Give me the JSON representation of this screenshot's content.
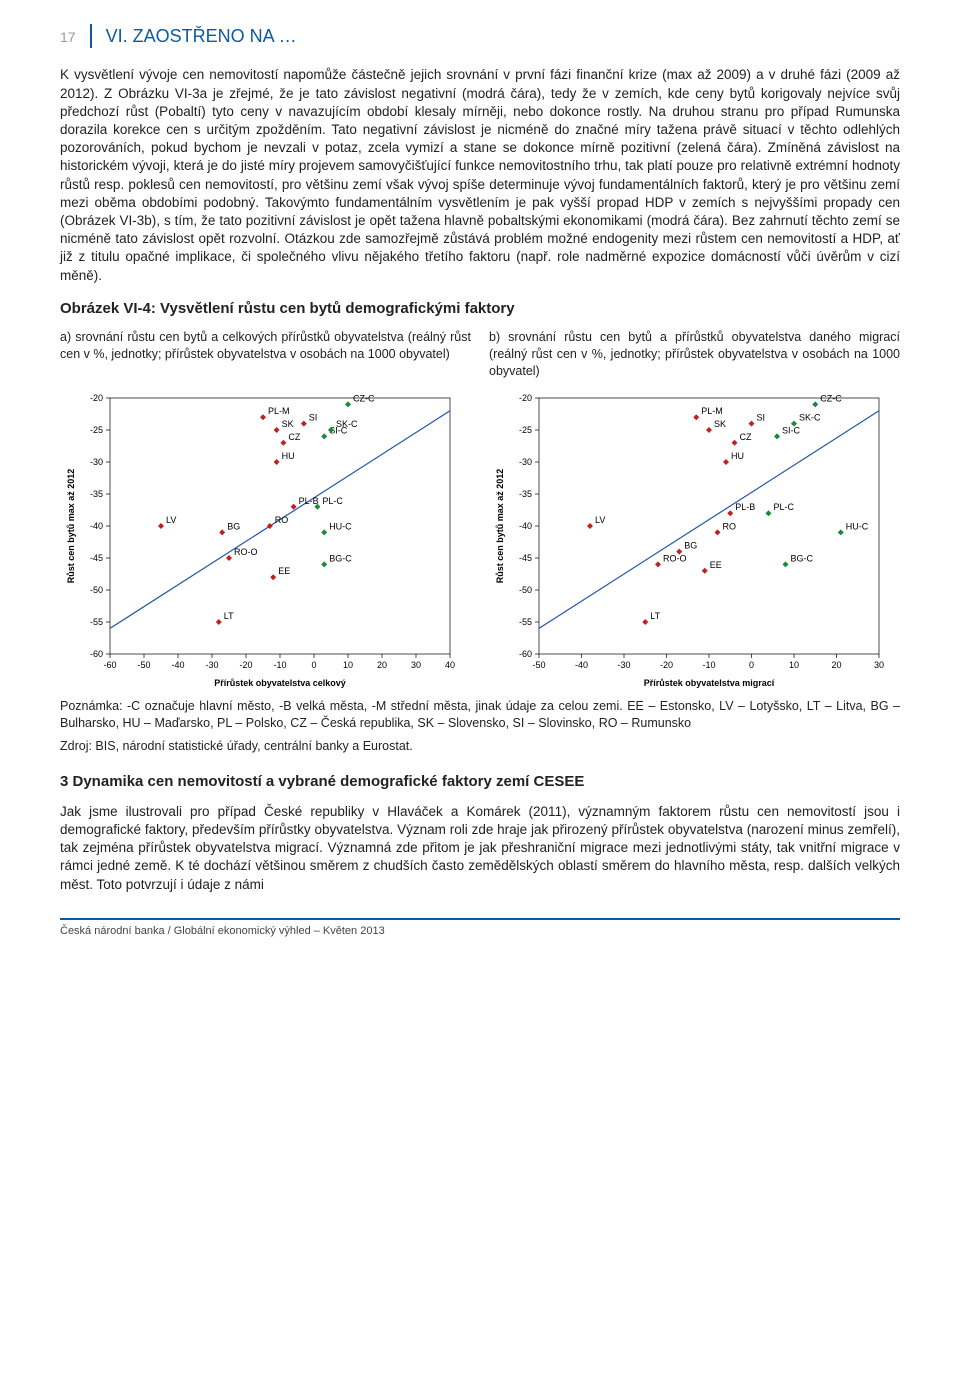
{
  "page_number": "17",
  "header_title": "VI. ZAOSTŘENO NA …",
  "colors": {
    "accent": "#0b5aa3",
    "text": "#222222",
    "grey": "#9a9a9a",
    "marker_red": "#c02020",
    "marker_green": "#178a3a",
    "line_blue": "#2255aa"
  },
  "para1": "K vysvětlení vývoje cen nemovitostí napomůže částečně jejich srovnání v první fázi finanční krize (max až 2009) a v druhé fázi (2009 až 2012). Z Obrázku VI-3a je zřejmé, že je tato závislost negativní (modrá čára), tedy že v zemích, kde ceny bytů korigovaly nejvíce svůj předchozí růst (Pobaltí) tyto ceny v navazujícím období klesaly mírněji, nebo dokonce rostly. Na druhou stranu pro případ Rumunska dorazila korekce cen s určitým zpožděním. Tato negativní závislost je nicméně do značné míry tažena právě situací v těchto odlehlých pozorováních, pokud bychom je nevzali v potaz, zcela vymizí a stane se dokonce mírně pozitivní (zelená čára). Zmíněná závislost na historickém vývoji, která je do jisté míry projevem samovyčišťující funkce nemovitostního trhu, tak platí pouze pro relativně extrémní hodnoty růstů resp. poklesů cen nemovitostí, pro většinu zemí však vývoj spíše determinuje vývoj fundamentálních faktorů, který je pro většinu zemí mezi oběma obdobími podobný. Takovýmto fundamentálním vysvětlením je pak vyšší propad HDP v zemích s nejvyššími propady cen (Obrázek VI-3b), s tím, že tato pozitivní závislost je opět tažena hlavně pobaltskými ekonomikami (modrá čára). Bez zahrnutí těchto zemí se nicméně tato závislost opět rozvolní. Otázkou zde samozřejmě zůstává problém možné endogenity mezi růstem cen nemovitostí a HDP, ať již z titulu opačné implikace, či společného vlivu nějakého třetího faktoru (např. role nadměrné expozice domácností vůči úvěrům v cizí měně).",
  "fig_title": "Obrázek VI-4: Vysvětlení růstu cen bytů demografickými faktory",
  "sub_a": "a) srovnání růstu cen bytů a celkových přírůstků obyvatelstva (reálný růst cen v %, jednotky; přírůstek obyvatelstva v osobách na 1000 obyvatel)",
  "sub_b": "b) srovnání růstu cen bytů a přírůstků obyvatelstva daného migrací (reálný růst cen v %, jednotky; přírůstek obyvatelstva v osobách na 1000 obyvatel)",
  "chart_a": {
    "type": "scatter",
    "x_label": "Přírůstek obyvatelstva celkový",
    "y_label": "Růst cen bytů max až 2012",
    "xlim": [
      -60,
      40
    ],
    "xtick_step": 10,
    "ylim": [
      -60,
      -20
    ],
    "ytick_step": 5,
    "marker_size": 3,
    "line": {
      "color": "#2255aa",
      "width": 1.2,
      "p1": [
        -60,
        -56
      ],
      "p2": [
        40,
        -22
      ]
    },
    "series": [
      {
        "name": "countries",
        "color": "#c02020",
        "points": [
          {
            "x": -45,
            "y": -40,
            "label": "LV"
          },
          {
            "x": -27,
            "y": -41,
            "label": "BG"
          },
          {
            "x": -25,
            "y": -45,
            "label": "RO-O"
          },
          {
            "x": -11,
            "y": -25,
            "label": "SK"
          },
          {
            "x": -11,
            "y": -30,
            "label": "HU"
          },
          {
            "x": -12,
            "y": -48,
            "label": "EE"
          },
          {
            "x": -9,
            "y": -27,
            "label": "CZ"
          },
          {
            "x": -13,
            "y": -40,
            "label": "RO"
          },
          {
            "x": -28,
            "y": -55,
            "label": "LT"
          },
          {
            "x": -15,
            "y": -23,
            "label": "PL-M"
          },
          {
            "x": -3,
            "y": -24,
            "label": "SI"
          },
          {
            "x": -6,
            "y": -37,
            "label": "PL-B"
          }
        ]
      },
      {
        "name": "capitals",
        "color": "#178a3a",
        "points": [
          {
            "x": 3,
            "y": -26,
            "label": "SI-C"
          },
          {
            "x": 5,
            "y": -25,
            "label": "SK-C"
          },
          {
            "x": 10,
            "y": -21,
            "label": "CZ-C"
          },
          {
            "x": 1,
            "y": -37,
            "label": "PL-C"
          },
          {
            "x": 3,
            "y": -41,
            "label": "HU-C"
          },
          {
            "x": 3,
            "y": -46,
            "label": "BG-C"
          }
        ]
      }
    ]
  },
  "chart_b": {
    "type": "scatter",
    "x_label": "Přírůstek obyvatelstva migrací",
    "y_label": "Růst cen bytů max až 2012",
    "xlim": [
      -50,
      30
    ],
    "xtick_step": 10,
    "ylim": [
      -60,
      -20
    ],
    "ytick_step": 5,
    "marker_size": 3,
    "line": {
      "color": "#2255aa",
      "width": 1.2,
      "p1": [
        -50,
        -56
      ],
      "p2": [
        30,
        -22
      ]
    },
    "series": [
      {
        "name": "countries",
        "color": "#c02020",
        "points": [
          {
            "x": -38,
            "y": -40,
            "label": "LV"
          },
          {
            "x": -17,
            "y": -44,
            "label": "BG"
          },
          {
            "x": -22,
            "y": -46,
            "label": "RO-O"
          },
          {
            "x": -10,
            "y": -25,
            "label": "SK"
          },
          {
            "x": -6,
            "y": -30,
            "label": "HU"
          },
          {
            "x": -11,
            "y": -47,
            "label": "EE"
          },
          {
            "x": -4,
            "y": -27,
            "label": "CZ"
          },
          {
            "x": -8,
            "y": -41,
            "label": "RO"
          },
          {
            "x": -25,
            "y": -55,
            "label": "LT"
          },
          {
            "x": -13,
            "y": -23,
            "label": "PL-M"
          },
          {
            "x": 0,
            "y": -24,
            "label": "SI"
          },
          {
            "x": -5,
            "y": -38,
            "label": "PL-B"
          }
        ]
      },
      {
        "name": "capitals",
        "color": "#178a3a",
        "points": [
          {
            "x": 6,
            "y": -26,
            "label": "SI-C"
          },
          {
            "x": 10,
            "y": -24,
            "label": "SK-C"
          },
          {
            "x": 15,
            "y": -21,
            "label": "CZ-C"
          },
          {
            "x": 4,
            "y": -38,
            "label": "PL-C"
          },
          {
            "x": 21,
            "y": -41,
            "label": "HU-C"
          },
          {
            "x": 8,
            "y": -46,
            "label": "BG-C"
          }
        ]
      }
    ]
  },
  "note_text": "Poznámka: -C označuje hlavní město, -B velká města, -M střední města, jinak údaje za celou zemi. EE – Estonsko, LV – Lotyšsko, LT – Litva, BG – Bulharsko, HU – Maďarsko, PL – Polsko, CZ – Česká republika, SK – Slovensko, SI – Slovinsko, RO – Rumunsko",
  "source_text": "Zdroj: BIS, národní statistické úřady, centrální banky a Eurostat.",
  "section3_title": "3 Dynamika cen nemovitostí a vybrané demografické faktory zemí CESEE",
  "para2": "Jak jsme ilustrovali pro případ České republiky v Hlaváček a Komárek (2011), významným faktorem růstu cen nemovitostí jsou i demografické faktory, především přírůstky obyvatelstva. Význam roli zde hraje jak přirozený přírůstek obyvatelstva (narození minus zemřelí), tak zejména přírůstek obyvatelstva migrací. Významná zde přitom je jak přeshraniční migrace mezi jednotlivými státy, tak vnitřní migrace v rámci jedné země. K té dochází většinou směrem z chudších často zemědělských oblastí směrem do hlavního města, resp. dalších velkých měst. Toto potvrzují i údaje z námi",
  "footer_text": "Česká národní banka / Globální ekonomický výhled – Květen 2013"
}
